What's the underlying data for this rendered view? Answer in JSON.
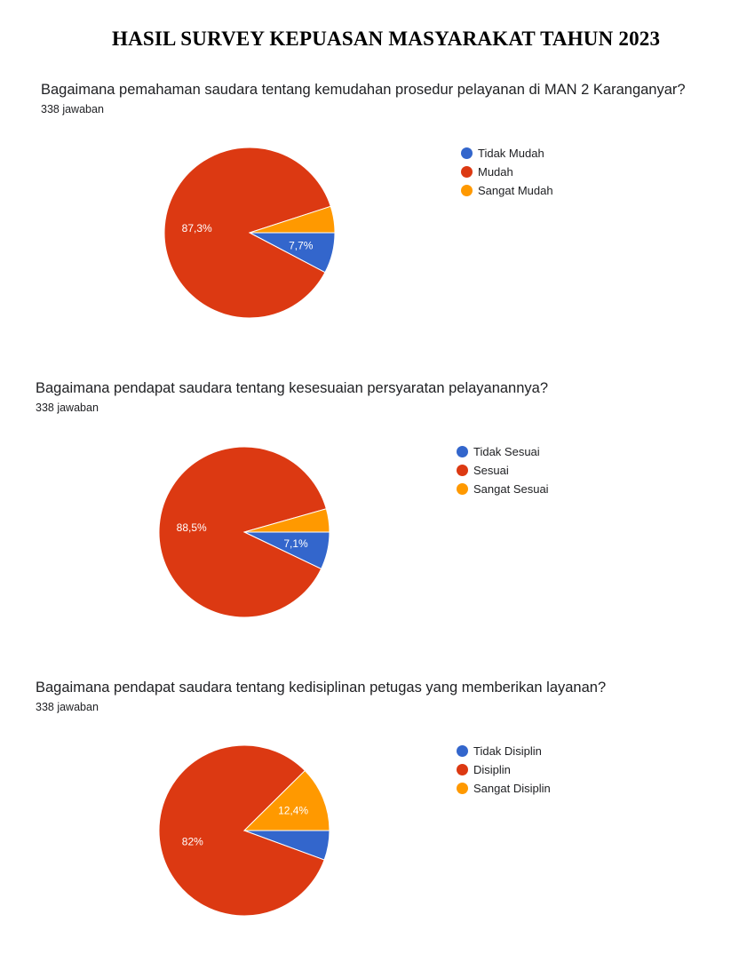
{
  "page": {
    "title": "HASIL SURVEY KEPUASAN MASYARAKAT TAHUN 2023"
  },
  "chart_data": [
    {
      "type": "pie",
      "title": "Bagaimana pemahaman saudara tentang kemudahan prosedur pelayanan di MAN 2 Karanganyar?",
      "subtitle": "338 jawaban",
      "categories": [
        "Tidak Mudah",
        "Mudah",
        "Sangat Mudah"
      ],
      "values": [
        7.7,
        87.3,
        5.0
      ],
      "data_labels": [
        "7,7%",
        "87,3%",
        ""
      ],
      "colors": [
        "#3366cc",
        "#dc3912",
        "#ff9900"
      ],
      "legend": "right"
    },
    {
      "type": "pie",
      "title": "Bagaimana pendapat saudara tentang kesesuaian persyaratan pelayanannya?",
      "subtitle": "338 jawaban",
      "categories": [
        "Tidak Sesuai",
        "Sesuai",
        "Sangat Sesuai"
      ],
      "values": [
        7.1,
        88.5,
        4.4
      ],
      "data_labels": [
        "7,1%",
        "88,5%",
        ""
      ],
      "colors": [
        "#3366cc",
        "#dc3912",
        "#ff9900"
      ],
      "legend": "right"
    },
    {
      "type": "pie",
      "title": "Bagaimana pendapat saudara tentang kedisiplinan petugas yang memberikan layanan?",
      "subtitle": "338 jawaban",
      "categories": [
        "Tidak Disiplin",
        "Disiplin",
        "Sangat Disiplin"
      ],
      "values": [
        5.6,
        82.0,
        12.4
      ],
      "data_labels": [
        "",
        "82%",
        "12,4%"
      ],
      "colors": [
        "#3366cc",
        "#dc3912",
        "#ff9900"
      ],
      "legend": "right"
    }
  ]
}
